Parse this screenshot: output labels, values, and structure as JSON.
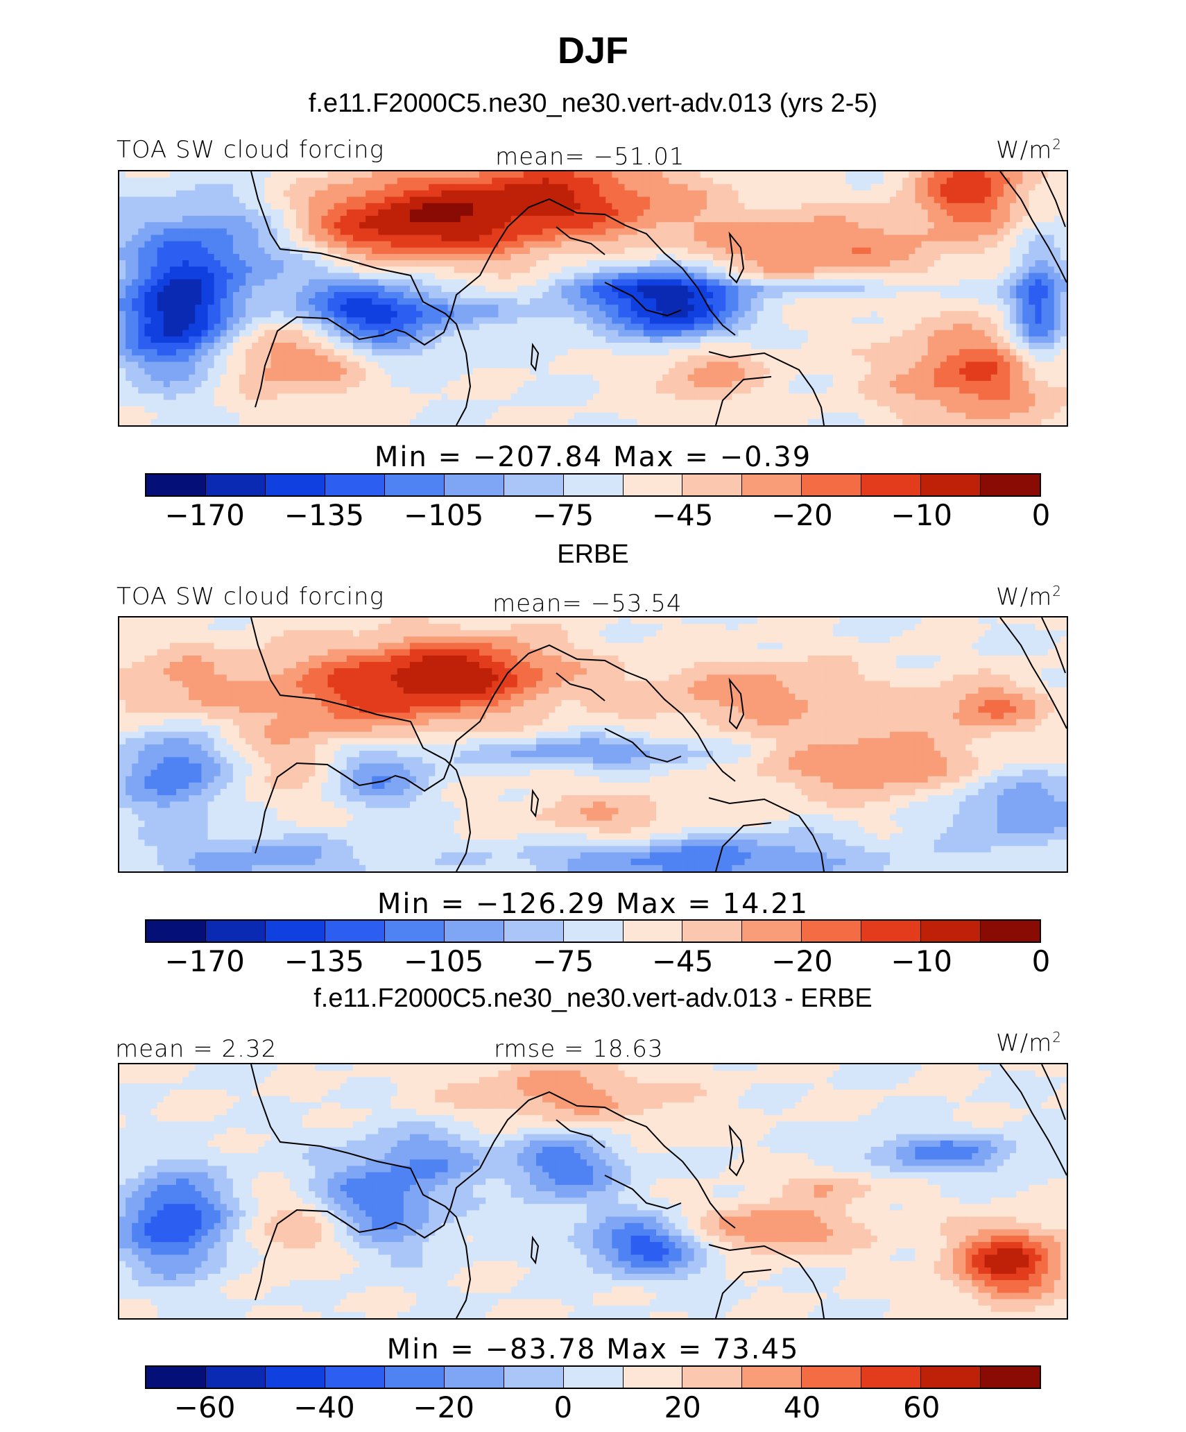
{
  "header": {
    "title": "DJF",
    "subtitle": "f.e11.F2000C5.ne30_ne30.vert-adv.013 (yrs 2-5)"
  },
  "panels": [
    {
      "left_label": "TOA SW cloud forcing",
      "center_label": "mean=  −51.01",
      "units": "W/m",
      "units_sup": "2",
      "minmax": "Min  =  −207.84  Max  =    −0.39",
      "ticks": [
        "−170",
        "−135",
        "−105",
        "−75",
        "−45",
        "−20",
        "−10",
        "0"
      ],
      "field": "model"
    },
    {
      "title": "ERBE",
      "left_label": "TOA SW cloud forcing",
      "center_label": "mean=  −53.54",
      "units": "W/m",
      "units_sup": "2",
      "minmax": "Min  =  −126.29  Max  =    14.21",
      "ticks": [
        "−170",
        "−135",
        "−105",
        "−75",
        "−45",
        "−20",
        "−10",
        "0"
      ],
      "field": "obs"
    },
    {
      "title": "f.e11.F2000C5.ne30_ne30.vert-adv.013 - ERBE",
      "left_label": "mean  =    2.32",
      "center_label": "rmse  =   18.63",
      "units": "W/m",
      "units_sup": "2",
      "minmax": "Min  =  −83.78  Max  =    73.45",
      "ticks": [
        "−60",
        "−40",
        "−20",
        "0",
        "20",
        "40",
        "60"
      ],
      "field": "diff"
    }
  ],
  "colors": {
    "palette": [
      "#050f78",
      "#0a2ab4",
      "#1140e0",
      "#2c5ef2",
      "#4f82f2",
      "#7fa6f4",
      "#aac6f8",
      "#d6e6fa",
      "#fde6d6",
      "#fbc7ae",
      "#f89d78",
      "#f36c44",
      "#e23c1c",
      "#bf2008",
      "#8a0a04"
    ],
    "coast": "#000000"
  }
}
